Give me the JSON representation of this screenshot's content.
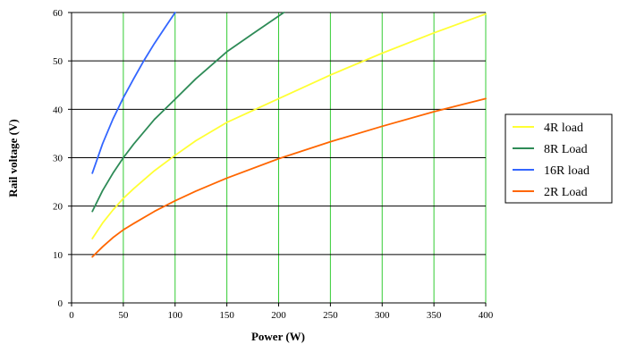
{
  "chart_data": {
    "type": "line",
    "title": "",
    "xlabel": "Power (W)",
    "ylabel": "Rail voltage (V)",
    "xlim": [
      0,
      400
    ],
    "ylim": [
      0,
      60
    ],
    "xticks": [
      0,
      50,
      100,
      150,
      200,
      250,
      300,
      350,
      400
    ],
    "yticks": [
      0,
      10,
      20,
      30,
      40,
      50,
      60
    ],
    "grid": true,
    "legend_position": "right",
    "colors": {
      "vertical_grid": "#33cc33",
      "horizontal_grid": "#000000"
    },
    "series": [
      {
        "name": "4R load",
        "color": "#ffff33",
        "x": [
          20,
          30,
          40,
          50,
          60,
          80,
          100,
          120,
          150,
          200,
          250,
          300,
          350,
          400
        ],
        "y": [
          13.3,
          16.5,
          19.2,
          21.6,
          23.6,
          27.3,
          30.5,
          33.5,
          37.3,
          42.2,
          47.1,
          51.6,
          55.8,
          59.7
        ]
      },
      {
        "name": "8R Load",
        "color": "#2e8b57",
        "x": [
          20,
          30,
          40,
          50,
          60,
          80,
          100,
          120,
          150,
          175,
          205
        ],
        "y": [
          18.9,
          23.2,
          26.8,
          30.0,
          32.8,
          37.9,
          42.1,
          46.3,
          51.9,
          55.6,
          60.0
        ]
      },
      {
        "name": "16R load",
        "color": "#3366ff",
        "x": [
          20,
          30,
          40,
          50,
          60,
          70,
          80,
          90,
          100
        ],
        "y": [
          26.8,
          32.9,
          38.0,
          42.4,
          46.3,
          50.1,
          53.6,
          56.8,
          60.0
        ]
      },
      {
        "name": "2R Load",
        "color": "#ff6600",
        "x": [
          20,
          30,
          40,
          50,
          60,
          80,
          100,
          120,
          150,
          200,
          250,
          300,
          350,
          400
        ],
        "y": [
          9.5,
          11.6,
          13.5,
          15.1,
          16.4,
          18.9,
          21.1,
          23.1,
          25.8,
          29.8,
          33.3,
          36.5,
          39.5,
          42.2
        ]
      }
    ]
  }
}
